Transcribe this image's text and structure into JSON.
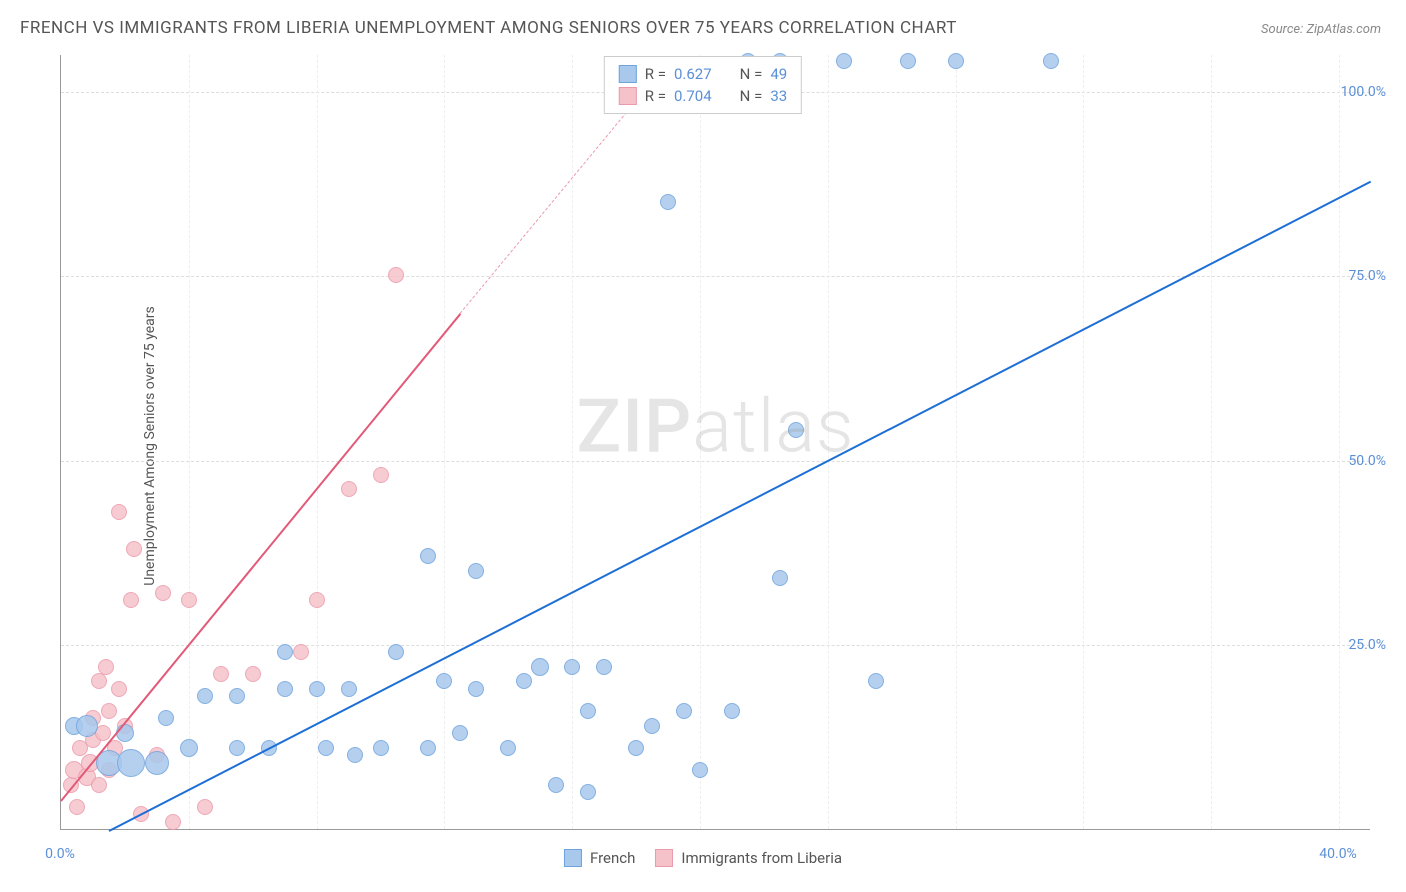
{
  "title": "FRENCH VS IMMIGRANTS FROM LIBERIA UNEMPLOYMENT AMONG SENIORS OVER 75 YEARS CORRELATION CHART",
  "source_label": "Source: ",
  "source_value": "ZipAtlas.com",
  "y_axis_label": "Unemployment Among Seniors over 75 years",
  "watermark_a": "ZIP",
  "watermark_b": "atlas",
  "chart": {
    "type": "scatter",
    "background_color": "#ffffff",
    "grid_color": "#dddddd",
    "xlim": [
      0,
      41
    ],
    "ylim": [
      0,
      105
    ],
    "y_ticks": [
      {
        "v": 25,
        "label": "25.0%"
      },
      {
        "v": 50,
        "label": "50.0%"
      },
      {
        "v": 75,
        "label": "75.0%"
      },
      {
        "v": 100,
        "label": "100.0%"
      }
    ],
    "x_ticks": [
      {
        "v": 0,
        "label": "0.0%"
      },
      {
        "v": 40,
        "label": "40.0%"
      }
    ],
    "x_gridlines": [
      4,
      8,
      12,
      16,
      20,
      24,
      28,
      32,
      36,
      40
    ]
  },
  "series": {
    "french": {
      "label": "French",
      "color_fill": "#a8c8ec",
      "color_stroke": "#6fa3dd",
      "trend_color": "#1d6fd6",
      "R": "0.627",
      "N": "49",
      "trend": {
        "x1": 1.5,
        "y1": 0,
        "x2": 41,
        "y2": 88
      },
      "points": [
        {
          "x": 0.4,
          "y": 14,
          "r": 9
        },
        {
          "x": 0.8,
          "y": 14,
          "r": 11
        },
        {
          "x": 1.5,
          "y": 9,
          "r": 13
        },
        {
          "x": 2.2,
          "y": 9,
          "r": 14
        },
        {
          "x": 3.0,
          "y": 9,
          "r": 12
        },
        {
          "x": 2.0,
          "y": 13,
          "r": 9
        },
        {
          "x": 3.3,
          "y": 15,
          "r": 8
        },
        {
          "x": 4.0,
          "y": 11,
          "r": 9
        },
        {
          "x": 4.5,
          "y": 18,
          "r": 8
        },
        {
          "x": 5.5,
          "y": 11,
          "r": 8
        },
        {
          "x": 5.5,
          "y": 18,
          "r": 8
        },
        {
          "x": 6.5,
          "y": 11,
          "r": 8
        },
        {
          "x": 7.0,
          "y": 19,
          "r": 8
        },
        {
          "x": 7.0,
          "y": 24,
          "r": 8
        },
        {
          "x": 8.0,
          "y": 19,
          "r": 8
        },
        {
          "x": 8.3,
          "y": 11,
          "r": 8
        },
        {
          "x": 9.2,
          "y": 10,
          "r": 8
        },
        {
          "x": 9.0,
          "y": 19,
          "r": 8
        },
        {
          "x": 10.0,
          "y": 11,
          "r": 8
        },
        {
          "x": 10.5,
          "y": 24,
          "r": 8
        },
        {
          "x": 11.5,
          "y": 11,
          "r": 8
        },
        {
          "x": 11.5,
          "y": 37,
          "r": 8
        },
        {
          "x": 12.5,
          "y": 13,
          "r": 8
        },
        {
          "x": 12.0,
          "y": 20,
          "r": 8
        },
        {
          "x": 13.0,
          "y": 19,
          "r": 8
        },
        {
          "x": 13.0,
          "y": 35,
          "r": 8
        },
        {
          "x": 14.0,
          "y": 11,
          "r": 8
        },
        {
          "x": 14.5,
          "y": 20,
          "r": 8
        },
        {
          "x": 15.0,
          "y": 22,
          "r": 9
        },
        {
          "x": 15.5,
          "y": 6,
          "r": 8
        },
        {
          "x": 16.0,
          "y": 22,
          "r": 8
        },
        {
          "x": 16.5,
          "y": 5,
          "r": 8
        },
        {
          "x": 16.5,
          "y": 16,
          "r": 8
        },
        {
          "x": 17.0,
          "y": 22,
          "r": 8
        },
        {
          "x": 18.0,
          "y": 11,
          "r": 8
        },
        {
          "x": 18.5,
          "y": 14,
          "r": 8
        },
        {
          "x": 19.0,
          "y": 85,
          "r": 8
        },
        {
          "x": 19.5,
          "y": 16,
          "r": 8
        },
        {
          "x": 20.0,
          "y": 8,
          "r": 8
        },
        {
          "x": 21.0,
          "y": 16,
          "r": 8
        },
        {
          "x": 21.5,
          "y": 104,
          "r": 8
        },
        {
          "x": 22.5,
          "y": 104,
          "r": 8
        },
        {
          "x": 22.5,
          "y": 34,
          "r": 8
        },
        {
          "x": 23.0,
          "y": 54,
          "r": 8
        },
        {
          "x": 24.5,
          "y": 104,
          "r": 8
        },
        {
          "x": 25.5,
          "y": 20,
          "r": 8
        },
        {
          "x": 26.5,
          "y": 104,
          "r": 8
        },
        {
          "x": 28.0,
          "y": 104,
          "r": 8
        },
        {
          "x": 31.0,
          "y": 104,
          "r": 8
        }
      ]
    },
    "liberia": {
      "label": "Immigrants from Liberia",
      "color_fill": "#f5c2ca",
      "color_stroke": "#ec9aab",
      "trend_color": "#e25a78",
      "R": "0.704",
      "N": "33",
      "trend": {
        "x1": 0,
        "y1": 4,
        "x2": 12.5,
        "y2": 70
      },
      "trend_dashed": {
        "x1": 12.5,
        "y1": 70,
        "x2": 19,
        "y2": 104
      },
      "points": [
        {
          "x": 0.3,
          "y": 6,
          "r": 8
        },
        {
          "x": 0.4,
          "y": 8,
          "r": 9
        },
        {
          "x": 0.5,
          "y": 3,
          "r": 8
        },
        {
          "x": 0.6,
          "y": 11,
          "r": 8
        },
        {
          "x": 0.8,
          "y": 7,
          "r": 9
        },
        {
          "x": 0.9,
          "y": 9,
          "r": 9
        },
        {
          "x": 1.0,
          "y": 12,
          "r": 8
        },
        {
          "x": 1.0,
          "y": 15,
          "r": 8
        },
        {
          "x": 1.2,
          "y": 6,
          "r": 8
        },
        {
          "x": 1.2,
          "y": 20,
          "r": 8
        },
        {
          "x": 1.3,
          "y": 13,
          "r": 8
        },
        {
          "x": 1.4,
          "y": 22,
          "r": 8
        },
        {
          "x": 1.5,
          "y": 8,
          "r": 8
        },
        {
          "x": 1.5,
          "y": 16,
          "r": 8
        },
        {
          "x": 1.7,
          "y": 11,
          "r": 8
        },
        {
          "x": 1.8,
          "y": 43,
          "r": 8
        },
        {
          "x": 1.8,
          "y": 19,
          "r": 8
        },
        {
          "x": 2.0,
          "y": 14,
          "r": 8
        },
        {
          "x": 2.2,
          "y": 31,
          "r": 8
        },
        {
          "x": 2.3,
          "y": 38,
          "r": 8
        },
        {
          "x": 2.5,
          "y": 2,
          "r": 8
        },
        {
          "x": 3.0,
          "y": 10,
          "r": 8
        },
        {
          "x": 3.2,
          "y": 32,
          "r": 8
        },
        {
          "x": 3.5,
          "y": 1,
          "r": 8
        },
        {
          "x": 4.0,
          "y": 31,
          "r": 8
        },
        {
          "x": 4.5,
          "y": 3,
          "r": 8
        },
        {
          "x": 5.0,
          "y": 21,
          "r": 8
        },
        {
          "x": 6.0,
          "y": 21,
          "r": 8
        },
        {
          "x": 7.5,
          "y": 24,
          "r": 8
        },
        {
          "x": 8.0,
          "y": 31,
          "r": 8
        },
        {
          "x": 9.0,
          "y": 46,
          "r": 8
        },
        {
          "x": 10.0,
          "y": 48,
          "r": 8
        },
        {
          "x": 10.5,
          "y": 75,
          "r": 8
        }
      ]
    }
  },
  "legend_top": {
    "r_label": "R =",
    "n_label": "N ="
  }
}
